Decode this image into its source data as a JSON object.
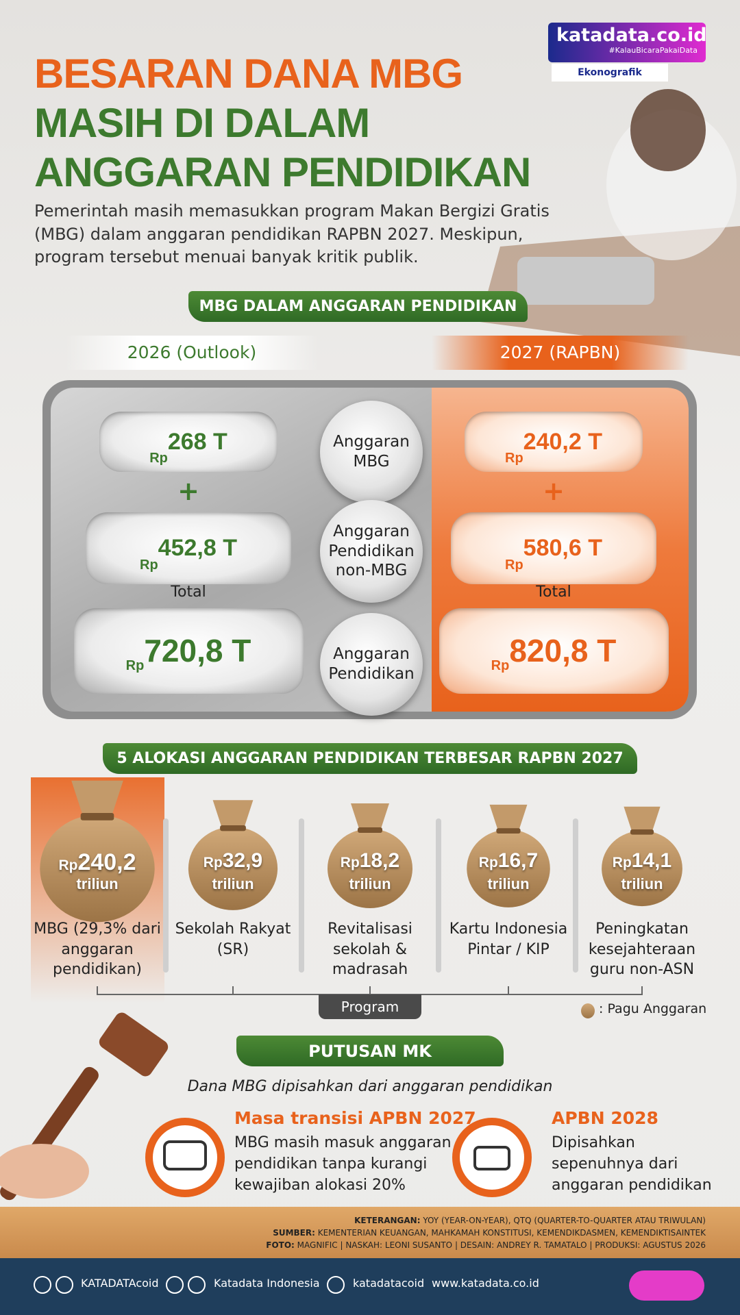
{
  "header": {
    "logo": "katadata.co.id",
    "tagline": "#KalauBicaraPakaiData",
    "category": "Ekonografik",
    "title_lines": [
      "BESARAN DANA MBG",
      "MASIH DI DALAM",
      "ANGGARAN PENDIDIKAN"
    ],
    "subtitle": "Pemerintah masih memasukkan program Makan Bergizi Gratis (MBG) dalam anggaran pendidikan RAPBN 2027. Meskipun, program tersebut menuai banyak kritik publik."
  },
  "comparison": {
    "title": "MBG DALAM ANGGARAN PENDIDIKAN",
    "currency": "Rp",
    "plus": "+",
    "total_label": "Total",
    "row_labels": [
      "Anggaran MBG",
      "Anggaran Pendidikan non-MBG",
      "Anggaran Pendidikan"
    ],
    "columns": [
      {
        "heading": "2026 (Outlook)",
        "values": [
          "268 T",
          "452,8 T",
          "720,8 T"
        ]
      },
      {
        "heading": "2027 (RAPBN)",
        "values": [
          "240,2 T",
          "580,6 T",
          "820,8 T"
        ]
      }
    ]
  },
  "allocation": {
    "title": "5 ALOKASI ANGGARAN PENDIDIKAN TERBESAR RAPBN 2027",
    "currency": "Rp",
    "unit": "triliun",
    "items": [
      {
        "amount": "240,2",
        "label": "MBG (29,3% dari anggaran pendidikan)"
      },
      {
        "amount": "32,9",
        "label": "Sekolah Rakyat (SR)"
      },
      {
        "amount": "18,2",
        "label": "Revitalisasi sekolah & madrasah"
      },
      {
        "amount": "16,7",
        "label": "Kartu Indonesia Pintar / KIP"
      },
      {
        "amount": "14,1",
        "label": "Peningkatan kesejahteraan guru non-ASN"
      }
    ],
    "axis_label": "Program",
    "legend": ": Pagu Anggaran"
  },
  "ruling": {
    "title": "PUTUSAN MK",
    "subtitle": "Dana MBG dipisahkan dari anggaran pendidikan",
    "items": [
      {
        "title": "Masa transisi APBN 2027",
        "text": "MBG masih masuk anggaran pendidikan tanpa kurangi kewajiban alokasi 20%"
      },
      {
        "title": "APBN 2028",
        "text": "Dipisahkan sepenuhnya dari anggaran pendidikan"
      }
    ]
  },
  "footer": {
    "notes": [
      {
        "label": "KETERANGAN:",
        "text": "YOY (YEAR-ON-YEAR), QTQ (QUARTER-TO-QUARTER ATAU TRIWULAN)"
      },
      {
        "label": "SUMBER:",
        "text": "KEMENTERIAN KEUANGAN, MAHKAMAH KONSTITUSI, KEMENDIKDASMEN, KEMENDIKTISAINTEK"
      },
      {
        "label": "FOTO:",
        "text": "MAGNIFIC | NASKAH: LEONI SUSANTO | DESAIN: ANDREY R. TAMATALO | PRODUKSI: AGUSTUS 2026"
      }
    ],
    "social": [
      "KATADATAcoid",
      "Katadata Indonesia",
      "katadatacoid",
      "www.katadata.co.id"
    ]
  }
}
